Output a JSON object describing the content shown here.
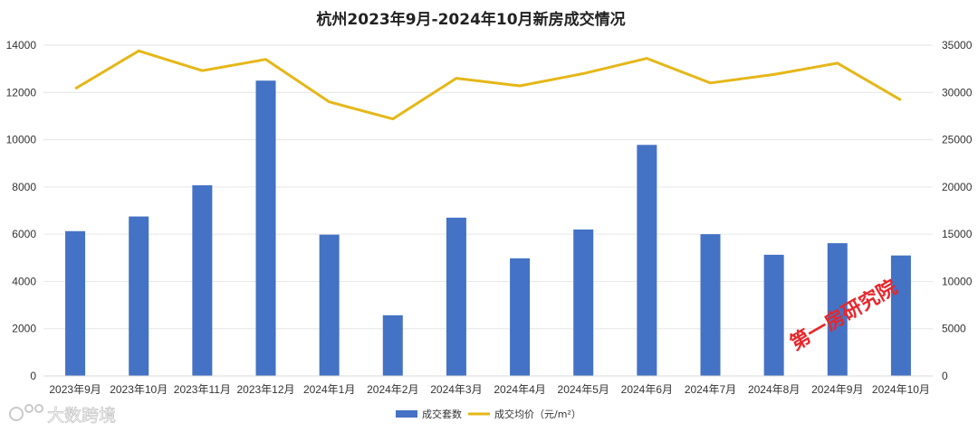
{
  "chart_data": {
    "type": "bar+line",
    "title": "杭州2023年9月-2024年10月新房成交情况",
    "categories": [
      "2023年9月",
      "2023年10月",
      "2023年11月",
      "2023年12月",
      "2024年1月",
      "2024年2月",
      "2024年3月",
      "2024年4月",
      "2024年5月",
      "2024年6月",
      "2024年7月",
      "2024年8月",
      "2024年9月",
      "2024年10月"
    ],
    "series": [
      {
        "name": "成交套数",
        "type": "bar",
        "axis": "left",
        "color": "#4472c4",
        "values": [
          6130,
          6750,
          8070,
          12500,
          5980,
          2570,
          6700,
          4980,
          6200,
          9780,
          6000,
          5130,
          5620,
          5100
        ]
      },
      {
        "name": "成交均价（元/m²）",
        "type": "line",
        "axis": "right",
        "color": "#e5b718",
        "values": [
          30400,
          34400,
          32300,
          33500,
          29000,
          27200,
          31500,
          30700,
          32000,
          33600,
          31000,
          31900,
          33100,
          29200
        ]
      }
    ],
    "y_left": {
      "min": 0,
      "max": 14000,
      "ticks": [
        "0",
        "2000",
        "4000",
        "6000",
        "8000",
        "10000",
        "12000",
        "14000"
      ]
    },
    "y_right": {
      "min": 0,
      "max": 35000,
      "ticks": [
        "0",
        "5000",
        "10000",
        "15000",
        "20000",
        "25000",
        "30000",
        "35000"
      ]
    },
    "grid": true,
    "legend_position": "bottom"
  },
  "watermarks": {
    "red_text": "第一房研究院",
    "grey_text": "大数跨境"
  }
}
